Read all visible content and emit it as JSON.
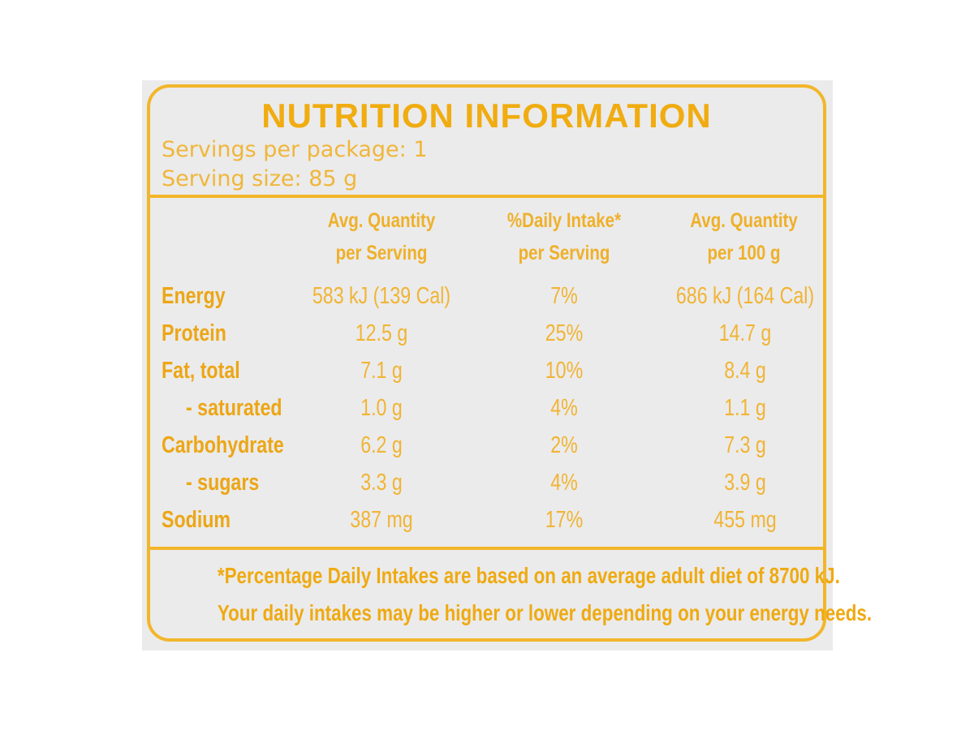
{
  "label": {
    "title": "NUTRITION INFORMATION",
    "servings_per_package": "Servings per package: 1",
    "serving_size": "Serving size: 85 g",
    "columns": [
      {
        "line1": "Avg. Quantity",
        "line2": "per Serving"
      },
      {
        "line1": "%Daily Intake*",
        "line2": "per Serving"
      },
      {
        "line1": "Avg. Quantity",
        "line2": "per 100 g"
      }
    ],
    "rows": [
      {
        "name": "Energy",
        "per_serving": "583 kJ (139 Cal)",
        "daily_intake": "7%",
        "per_100g": "686 kJ (164 Cal)"
      },
      {
        "name": "Protein",
        "per_serving": "12.5 g",
        "daily_intake": "25%",
        "per_100g": "14.7 g"
      },
      {
        "name": "Fat, total",
        "per_serving": "7.1 g",
        "daily_intake": "10%",
        "per_100g": "8.4 g"
      },
      {
        "name": "- saturated",
        "per_serving": "1.0 g",
        "daily_intake": "4%",
        "per_100g": "1.1 g"
      },
      {
        "name": "Carbohydrate",
        "per_serving": "6.2 g",
        "daily_intake": "2%",
        "per_100g": "7.3 g"
      },
      {
        "name": "- sugars",
        "per_serving": "3.3 g",
        "daily_intake": "4%",
        "per_100g": "3.9 g"
      },
      {
        "name": "Sodium",
        "per_serving": "387 mg",
        "daily_intake": "17%",
        "per_100g": "455 mg"
      }
    ],
    "footnote_line1": "*Percentage Daily Intakes are based on an average adult diet of 8700 kJ.",
    "footnote_line2": "Your daily intakes may be higher or lower depending on your energy needs."
  },
  "colors": {
    "ink": "#f0ac10",
    "background": "#ebebeb"
  }
}
